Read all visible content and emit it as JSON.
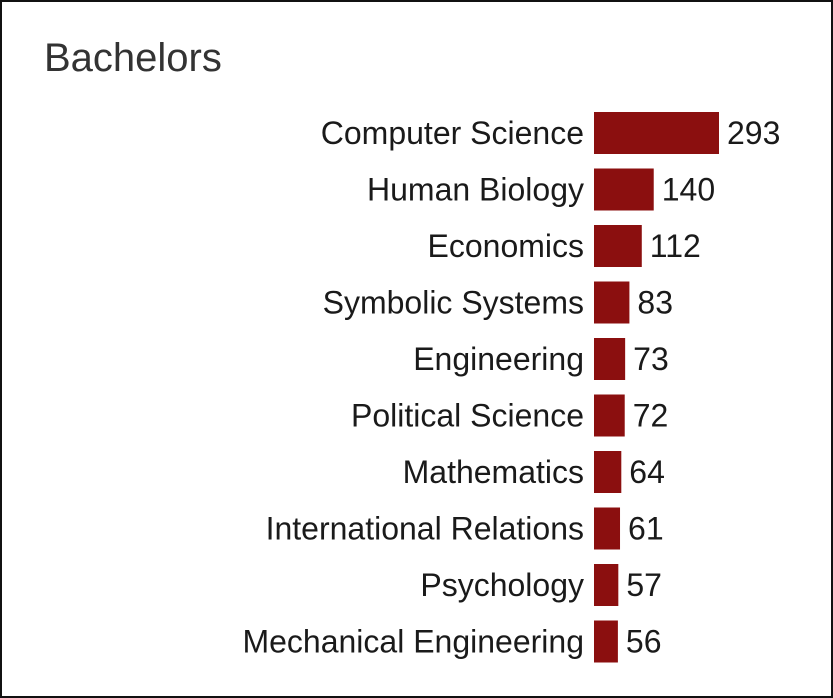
{
  "chart_data": {
    "type": "bar",
    "orientation": "horizontal",
    "title": "Bachelors",
    "categories": [
      "Computer Science",
      "Human Biology",
      "Economics",
      "Symbolic Systems",
      "Engineering",
      "Political Science",
      "Mathematics",
      "International Relations",
      "Psychology",
      "Mechanical Engineering"
    ],
    "values": [
      293,
      140,
      112,
      83,
      73,
      72,
      64,
      61,
      57,
      56
    ],
    "xlim": [
      0,
      293
    ],
    "grid": false,
    "legend": "none",
    "bar_color": "#8b0f0f"
  }
}
